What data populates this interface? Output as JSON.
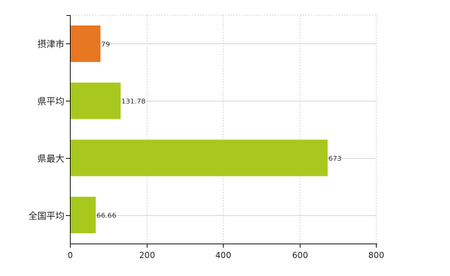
{
  "chart_data": {
    "type": "bar",
    "orientation": "horizontal",
    "categories": [
      "摂津市",
      "県平均",
      "県最大",
      "全国平均"
    ],
    "values": [
      79,
      131.78,
      673,
      66.66
    ],
    "value_labels": [
      "79",
      "131.78",
      "673",
      "66.66"
    ],
    "bar_colors": [
      "#e87722",
      "#a8c81e",
      "#a8c81e",
      "#a8c81e"
    ],
    "xlim": [
      0,
      800
    ],
    "x_ticks": [
      0,
      200,
      400,
      600,
      800
    ],
    "x_tick_labels": [
      "0",
      "200",
      "400",
      "600",
      "800"
    ],
    "title": "",
    "xlabel": "",
    "ylabel": "",
    "grid": true,
    "grid_color": "#d3d3d3",
    "axis_color": "#000000"
  }
}
